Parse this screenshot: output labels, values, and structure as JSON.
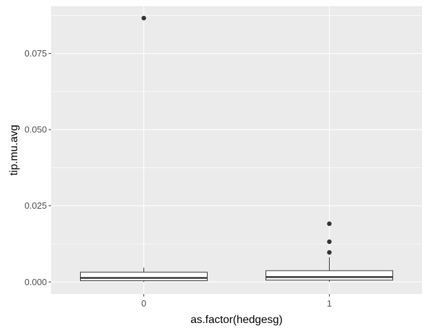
{
  "chart_data": {
    "type": "box",
    "xlabel": "as.factor(hedgesg)",
    "ylabel": "tip.mu.avg",
    "categories": [
      "0",
      "1"
    ],
    "ylim": [
      -0.004,
      0.0905
    ],
    "yticks": [
      0.0,
      0.025,
      0.05,
      0.075
    ],
    "ytick_labels": [
      "0.000",
      "0.025",
      "0.050",
      "0.075"
    ],
    "grid": true,
    "boxes": [
      {
        "category": "0",
        "lower_whisker": 0.0,
        "q1": 0.0004,
        "median": 0.0013,
        "q3": 0.0032,
        "upper_whisker": 0.0047,
        "outliers": [
          0.0866
        ]
      },
      {
        "category": "1",
        "lower_whisker": 0.0,
        "q1": 0.0006,
        "median": 0.0016,
        "q3": 0.0037,
        "upper_whisker": 0.0081,
        "outliers": [
          0.0097,
          0.0132,
          0.0191
        ]
      }
    ],
    "colors": {
      "panel_background": "#ebebeb",
      "grid_major": "#ffffff",
      "box_fill": "#ffffff",
      "box_stroke": "#333333",
      "outlier": "#333333",
      "tick_label": "#4d4d4d"
    }
  }
}
